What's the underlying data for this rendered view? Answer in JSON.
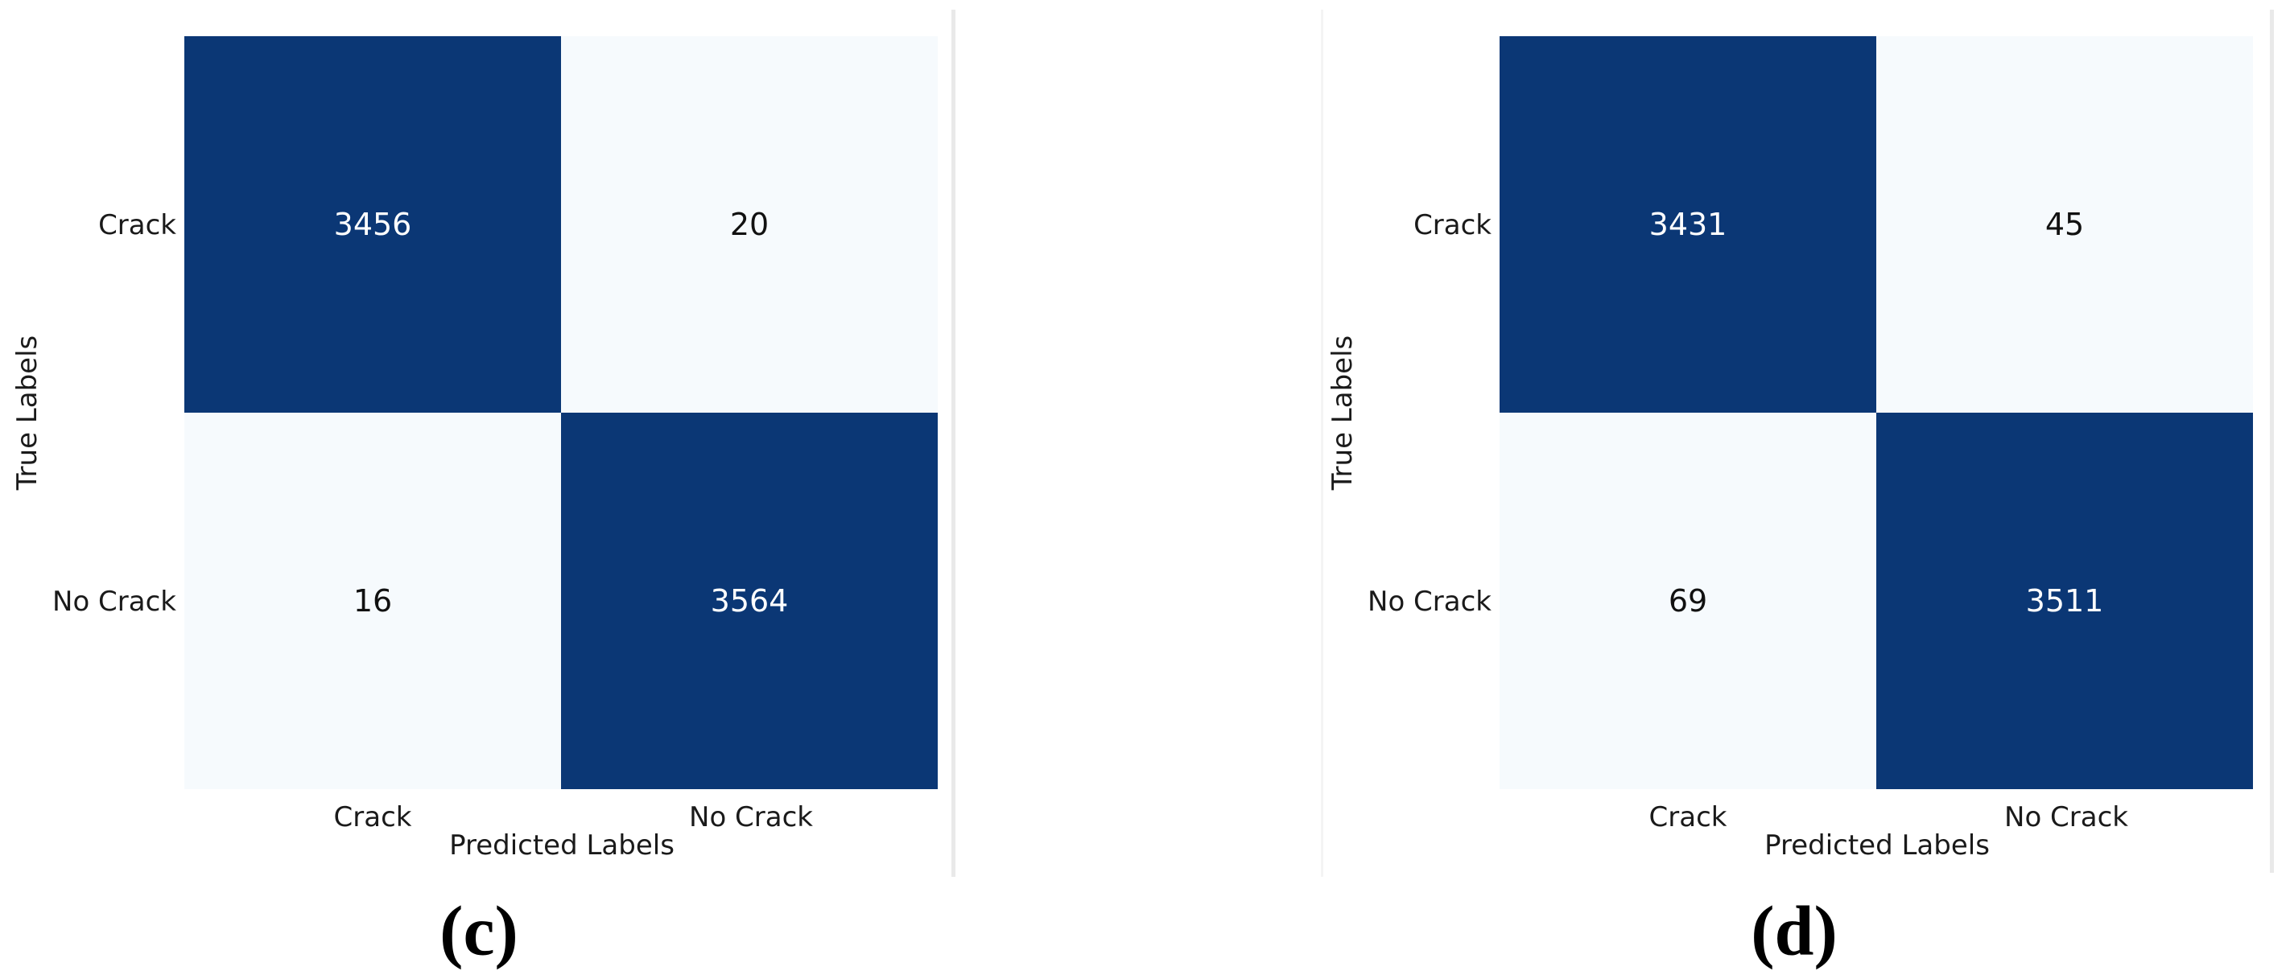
{
  "colors": {
    "cell_dark": "#0b3775",
    "cell_light": "#f6fafd",
    "divider": "#e9e9e9",
    "divider_faint": "#f4f4f4",
    "label_text": "#1a1a1a"
  },
  "chart_data": [
    {
      "type": "heatmap",
      "caption": "(c)",
      "x_categories": [
        "Crack",
        "No Crack"
      ],
      "y_categories": [
        "Crack",
        "No Crack"
      ],
      "values": [
        [
          3456,
          20
        ],
        [
          16,
          3564
        ]
      ],
      "xlabel": "Predicted Labels",
      "ylabel": "True Labels",
      "colormap": "Blues",
      "legend": "none",
      "cell_text_colors": [
        [
          "#ffffff",
          "#111111"
        ],
        [
          "#111111",
          "#ffffff"
        ]
      ]
    },
    {
      "type": "heatmap",
      "caption": "(d)",
      "x_categories": [
        "Crack",
        "No Crack"
      ],
      "y_categories": [
        "Crack",
        "No Crack"
      ],
      "values": [
        [
          3431,
          45
        ],
        [
          69,
          3511
        ]
      ],
      "xlabel": "Predicted Labels",
      "ylabel": "True Labels",
      "colormap": "Blues",
      "legend": "none",
      "cell_text_colors": [
        [
          "#ffffff",
          "#111111"
        ],
        [
          "#111111",
          "#ffffff"
        ]
      ]
    }
  ]
}
